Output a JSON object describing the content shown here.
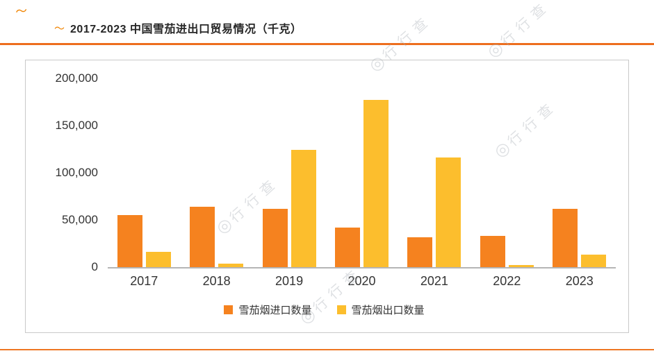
{
  "header": {
    "title": "2017-2023 中国雪茄进出口贸易情况（千克）",
    "logo_mark": "〜",
    "corner_mark": "〜"
  },
  "watermark": {
    "symbol": "◎",
    "label": "行行查"
  },
  "chart_data": {
    "type": "bar",
    "title": "2017-2023 中国雪茄进出口贸易情况（千克）",
    "categories": [
      "2017",
      "2018",
      "2019",
      "2020",
      "2021",
      "2022",
      "2023"
    ],
    "series": [
      {
        "name": "雪茄烟进口数量",
        "color": "#F5821F",
        "values": [
          55000,
          64000,
          62000,
          42000,
          31500,
          33000,
          62000
        ]
      },
      {
        "name": "雪茄烟出口数量",
        "color": "#FCBE2D",
        "values": [
          16500,
          3500,
          124500,
          177500,
          116500,
          2500,
          13500
        ]
      }
    ],
    "xlabel": "",
    "ylabel": "",
    "ylim": [
      0,
      200000
    ],
    "yticks": [
      0,
      50000,
      100000,
      150000,
      200000
    ],
    "ytick_labels": [
      "0",
      "50,000",
      "100,000",
      "150,000",
      "200,000"
    ],
    "grid": false,
    "legend_position": "bottom"
  }
}
